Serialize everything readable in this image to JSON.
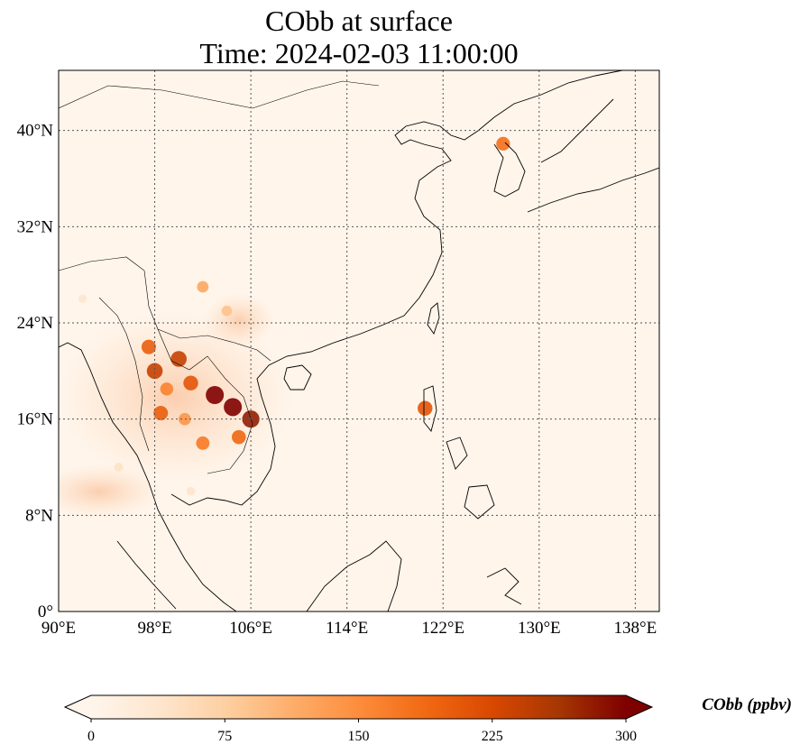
{
  "title": {
    "line1": "CObb at surface",
    "line2": "Time: 2024-02-03 11:00:00"
  },
  "map": {
    "lon_range": [
      90,
      140
    ],
    "lat_range": [
      0,
      45
    ],
    "lon_ticks": [
      {
        "value": 90,
        "label": "90°E"
      },
      {
        "value": 98,
        "label": "98°E"
      },
      {
        "value": 106,
        "label": "106°E"
      },
      {
        "value": 114,
        "label": "114°E"
      },
      {
        "value": 122,
        "label": "122°E"
      },
      {
        "value": 130,
        "label": "130°E"
      },
      {
        "value": 138,
        "label": "138°E"
      }
    ],
    "lat_ticks": [
      {
        "value": 0,
        "label": "0°"
      },
      {
        "value": 8,
        "label": "8°N"
      },
      {
        "value": 16,
        "label": "16°N"
      },
      {
        "value": 24,
        "label": "24°N"
      },
      {
        "value": 32,
        "label": "32°N"
      },
      {
        "value": 40,
        "label": "40°N"
      }
    ],
    "gridlines": true,
    "background_color": "#fff5eb",
    "hotspots": [
      {
        "lon": 103.0,
        "lat": 18.0,
        "value": 300
      },
      {
        "lon": 104.5,
        "lat": 17.0,
        "value": 300
      },
      {
        "lon": 106.0,
        "lat": 16.0,
        "value": 280
      },
      {
        "lon": 98.0,
        "lat": 20.0,
        "value": 240
      },
      {
        "lon": 100.0,
        "lat": 21.0,
        "value": 240
      },
      {
        "lon": 97.5,
        "lat": 22.0,
        "value": 200
      },
      {
        "lon": 101.0,
        "lat": 19.0,
        "value": 210
      },
      {
        "lon": 98.5,
        "lat": 16.5,
        "value": 200
      },
      {
        "lon": 102.0,
        "lat": 14.0,
        "value": 170
      },
      {
        "lon": 105.0,
        "lat": 14.5,
        "value": 190
      },
      {
        "lon": 100.5,
        "lat": 16.0,
        "value": 140
      },
      {
        "lon": 99.0,
        "lat": 18.5,
        "value": 160
      },
      {
        "lon": 104.0,
        "lat": 25.0,
        "value": 90
      },
      {
        "lon": 102.0,
        "lat": 27.0,
        "value": 120
      },
      {
        "lon": 127.0,
        "lat": 38.9,
        "value": 180
      },
      {
        "lon": 120.5,
        "lat": 16.9,
        "value": 210
      },
      {
        "lon": 95.0,
        "lat": 12.0,
        "value": 45
      },
      {
        "lon": 101.0,
        "lat": 10.0,
        "value": 40
      },
      {
        "lon": 92.0,
        "lat": 26.0,
        "value": 35
      }
    ]
  },
  "colorbar": {
    "min": 0,
    "max": 300,
    "extend": "both",
    "ticks": [
      {
        "value": 0,
        "label": "0"
      },
      {
        "value": 75,
        "label": "75"
      },
      {
        "value": 150,
        "label": "150"
      },
      {
        "value": 225,
        "label": "225"
      },
      {
        "value": 300,
        "label": "300"
      }
    ],
    "colormap": [
      "#fff5eb",
      "#fee6ce",
      "#fdd0a2",
      "#fdae6b",
      "#fd8d3c",
      "#f16913",
      "#d94801",
      "#a63603",
      "#7f0000"
    ],
    "label": "CObb (ppbv)"
  }
}
